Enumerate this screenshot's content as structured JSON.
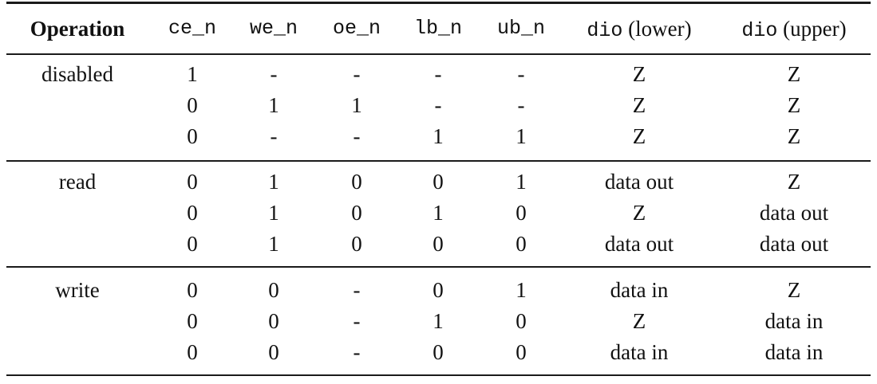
{
  "table": {
    "headers": [
      {
        "text": "Operation"
      },
      {
        "text": "ce_n"
      },
      {
        "text": "we_n"
      },
      {
        "text": "oe_n"
      },
      {
        "text": "lb_n"
      },
      {
        "text": "ub_n"
      },
      {
        "code": "dio",
        "text": " (lower)"
      },
      {
        "code": "dio",
        "text": " (upper)"
      }
    ],
    "groups": [
      {
        "operation": "disabled",
        "rows": [
          [
            "1",
            "-",
            "-",
            "-",
            "-",
            "Z",
            "Z"
          ],
          [
            "0",
            "1",
            "1",
            "-",
            "-",
            "Z",
            "Z"
          ],
          [
            "0",
            "-",
            "-",
            "1",
            "1",
            "Z",
            "Z"
          ]
        ]
      },
      {
        "operation": "read",
        "rows": [
          [
            "0",
            "1",
            "0",
            "0",
            "1",
            "data out",
            "Z"
          ],
          [
            "0",
            "1",
            "0",
            "1",
            "0",
            "Z",
            "data out"
          ],
          [
            "0",
            "1",
            "0",
            "0",
            "0",
            "data out",
            "data out"
          ]
        ]
      },
      {
        "operation": "write",
        "rows": [
          [
            "0",
            "0",
            "-",
            "0",
            "1",
            "data in",
            "Z"
          ],
          [
            "0",
            "0",
            "-",
            "1",
            "0",
            "Z",
            "data in"
          ],
          [
            "0",
            "0",
            "-",
            "0",
            "0",
            "data in",
            "data in"
          ]
        ]
      }
    ]
  }
}
